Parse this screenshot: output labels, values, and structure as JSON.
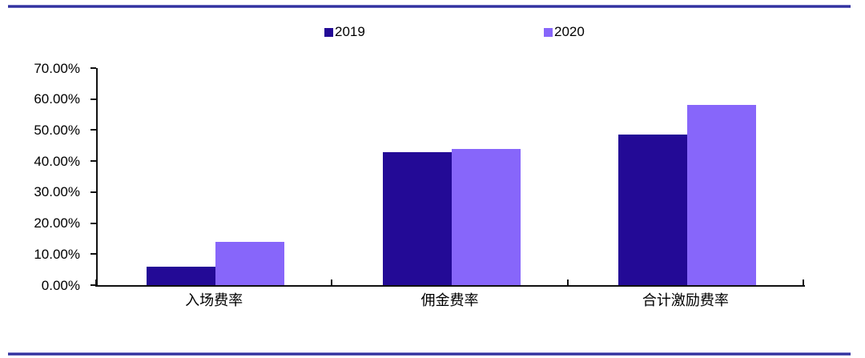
{
  "chart_data": {
    "type": "bar",
    "categories": [
      "入场费率",
      "佣金费率",
      "合计激励费率"
    ],
    "series": [
      {
        "name": "2019",
        "color": "#230a96",
        "values": [
          6.0,
          43.0,
          48.5
        ]
      },
      {
        "name": "2020",
        "color": "#8766fa",
        "values": [
          14.0,
          44.0,
          58.0
        ]
      }
    ],
    "ylabel": "",
    "xlabel": "",
    "ylim": [
      0,
      70
    ],
    "y_tick_step": 10,
    "y_tick_labels": [
      "70.00%",
      "60.00%",
      "50.00%",
      "40.00%",
      "30.00%",
      "20.00%",
      "10.00%",
      "0.00%"
    ],
    "legend_position": "top",
    "grid": false,
    "axis_color": "#111111"
  },
  "page": {
    "divider_color": "#32329e",
    "background": "#ffffff"
  }
}
